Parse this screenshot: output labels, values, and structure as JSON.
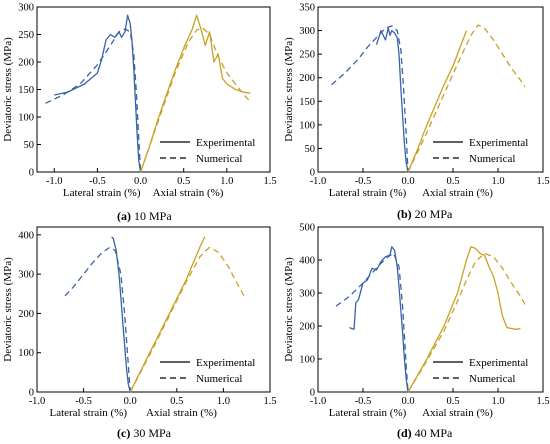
{
  "colors": {
    "lateral": "#3a62a6",
    "axial": "#c9a126",
    "axis": "#000000"
  },
  "legend_labels": [
    "Experimental",
    "Numerical"
  ],
  "chart_data": [
    {
      "type": "line",
      "panel_letter": "(a)",
      "caption": "10 MPa",
      "ylabel": "Deviatoric stress (MPa)",
      "xlabel_lateral": "Lateral strain (%)",
      "xlabel_axial": "Axial strain (%)",
      "xlim": [
        -1.2,
        1.5
      ],
      "ylim": [
        0,
        300
      ],
      "xticks": [
        -1.0,
        -0.5,
        0.0,
        0.5,
        1.0,
        1.5
      ],
      "xtick_labels": [
        "-1.0",
        "-0.5",
        "0.0",
        "0.5",
        "1.0",
        "1.5"
      ],
      "yticks": [
        0,
        50,
        100,
        150,
        200,
        250,
        300
      ],
      "ytick_labels": [
        "0",
        "50",
        "100",
        "150",
        "200",
        "250",
        "300"
      ],
      "legend": "bottom-right",
      "grid": false,
      "series": [
        {
          "style": "experimental",
          "part": "lateral",
          "x": [
            -1.0,
            -0.85,
            -0.65,
            -0.5,
            -0.45,
            -0.4,
            -0.35,
            -0.3,
            -0.25,
            -0.22,
            -0.18,
            -0.15,
            -0.12,
            -0.1,
            -0.08,
            -0.06,
            -0.04,
            -0.02,
            0.0
          ],
          "y": [
            140,
            145,
            160,
            180,
            205,
            240,
            250,
            245,
            255,
            245,
            255,
            285,
            270,
            240,
            190,
            130,
            70,
            20,
            0
          ]
        },
        {
          "style": "numerical",
          "part": "lateral",
          "x": [
            -1.1,
            -0.9,
            -0.7,
            -0.5,
            -0.35,
            -0.25,
            -0.18,
            -0.12,
            -0.08,
            -0.05,
            -0.02,
            0.0
          ],
          "y": [
            125,
            140,
            160,
            195,
            230,
            255,
            260,
            255,
            215,
            150,
            60,
            0
          ]
        },
        {
          "style": "experimental",
          "part": "axial",
          "x": [
            0.0,
            0.1,
            0.2,
            0.3,
            0.4,
            0.5,
            0.6,
            0.65,
            0.7,
            0.75,
            0.8,
            0.85,
            0.9,
            0.95,
            1.0,
            1.1,
            1.2,
            1.27
          ],
          "y": [
            0,
            45,
            95,
            140,
            185,
            225,
            260,
            285,
            260,
            230,
            255,
            200,
            215,
            170,
            160,
            150,
            145,
            143
          ]
        },
        {
          "style": "numerical",
          "part": "axial",
          "x": [
            0.0,
            0.2,
            0.4,
            0.55,
            0.65,
            0.72,
            0.8,
            0.9,
            1.0,
            1.1,
            1.2,
            1.27
          ],
          "y": [
            0,
            90,
            180,
            235,
            258,
            262,
            250,
            210,
            180,
            160,
            140,
            128
          ]
        }
      ]
    },
    {
      "type": "line",
      "panel_letter": "(b)",
      "caption": "20 MPa",
      "ylabel": "Deviatoric stress (MPa)",
      "xlabel_lateral": "Lateral strain (%)",
      "xlabel_axial": "Axial strain (%)",
      "xlim": [
        -1.0,
        1.5
      ],
      "ylim": [
        0,
        350
      ],
      "xticks": [
        -1.0,
        -0.5,
        0.0,
        0.5,
        1.0,
        1.5
      ],
      "xtick_labels": [
        "-1.0",
        "-0.5",
        "0.0",
        "0.5",
        "1.0",
        "1.5"
      ],
      "yticks": [
        0,
        50,
        100,
        150,
        200,
        250,
        300,
        350
      ],
      "ytick_labels": [
        "0",
        "50",
        "100",
        "150",
        "200",
        "250",
        "300",
        "350"
      ],
      "legend": "bottom-right",
      "grid": false,
      "series": [
        {
          "style": "experimental",
          "part": "lateral",
          "x": [
            -0.35,
            -0.3,
            -0.25,
            -0.22,
            -0.2,
            -0.18,
            -0.15,
            -0.12,
            -0.1,
            -0.08,
            -0.06,
            -0.04,
            -0.02,
            0.0
          ],
          "y": [
            270,
            300,
            280,
            305,
            290,
            300,
            295,
            285,
            250,
            180,
            120,
            60,
            20,
            0
          ]
        },
        {
          "style": "numerical",
          "part": "lateral",
          "x": [
            -0.85,
            -0.7,
            -0.55,
            -0.45,
            -0.35,
            -0.25,
            -0.18,
            -0.12,
            -0.08,
            -0.05,
            -0.02,
            0.0
          ],
          "y": [
            185,
            210,
            240,
            265,
            285,
            305,
            310,
            300,
            260,
            180,
            80,
            0
          ]
        },
        {
          "style": "experimental",
          "part": "axial",
          "x": [
            0.0,
            0.1,
            0.2,
            0.3,
            0.4,
            0.5,
            0.6,
            0.65
          ],
          "y": [
            0,
            45,
            95,
            140,
            185,
            225,
            275,
            300
          ]
        },
        {
          "style": "numerical",
          "part": "axial",
          "x": [
            0.0,
            0.2,
            0.4,
            0.6,
            0.7,
            0.78,
            0.85,
            0.95,
            1.05,
            1.15,
            1.25,
            1.3
          ],
          "y": [
            0,
            80,
            165,
            250,
            290,
            312,
            305,
            280,
            250,
            220,
            195,
            180
          ]
        }
      ]
    },
    {
      "type": "line",
      "panel_letter": "(c)",
      "caption": "30 MPa",
      "ylabel": "Deviatoric stress (MPa)",
      "xlabel_lateral": "Lateral strain (%)",
      "xlabel_axial": "Axial strain (%)",
      "xlim": [
        -1.0,
        1.5
      ],
      "ylim": [
        0,
        420
      ],
      "xticks": [
        -1.0,
        -0.5,
        0.0,
        0.5,
        1.0,
        1.5
      ],
      "xtick_labels": [
        "-1.0",
        "-0.5",
        "0.0",
        "0.5",
        "1.0",
        "1.5"
      ],
      "yticks": [
        0,
        100,
        200,
        300,
        400
      ],
      "ytick_labels": [
        "0",
        "100",
        "200",
        "300",
        "400"
      ],
      "legend": "bottom-right",
      "grid": false,
      "series": [
        {
          "style": "experimental",
          "part": "lateral",
          "x": [
            -0.2,
            -0.18,
            -0.15,
            -0.12,
            -0.1,
            -0.08,
            -0.06,
            -0.04,
            -0.02,
            0.0
          ],
          "y": [
            395,
            390,
            360,
            300,
            240,
            180,
            120,
            60,
            20,
            0
          ]
        },
        {
          "style": "numerical",
          "part": "lateral",
          "x": [
            -0.7,
            -0.6,
            -0.5,
            -0.4,
            -0.3,
            -0.22,
            -0.16,
            -0.1,
            -0.06,
            -0.02,
            0.0
          ],
          "y": [
            245,
            270,
            300,
            330,
            355,
            368,
            360,
            300,
            200,
            70,
            0
          ]
        },
        {
          "style": "experimental",
          "part": "axial",
          "x": [
            0.0,
            0.2,
            0.4,
            0.6,
            0.75,
            0.8
          ],
          "y": [
            0,
            95,
            190,
            285,
            370,
            395
          ]
        },
        {
          "style": "numerical",
          "part": "axial",
          "x": [
            0.0,
            0.2,
            0.4,
            0.6,
            0.75,
            0.85,
            0.95,
            1.05,
            1.15,
            1.22
          ],
          "y": [
            0,
            90,
            185,
            280,
            345,
            368,
            355,
            320,
            275,
            245
          ]
        }
      ]
    },
    {
      "type": "line",
      "panel_letter": "(d)",
      "caption": "40 MPa",
      "ylabel": "Deviatoric stress (MPa)",
      "xlabel_lateral": "Lateral strain (%)",
      "xlabel_axial": "Axial strain (%)",
      "xlim": [
        -1.0,
        1.5
      ],
      "ylim": [
        0,
        500
      ],
      "xticks": [
        -1.0,
        -0.5,
        0.0,
        0.5,
        1.0,
        1.5
      ],
      "xtick_labels": [
        "-1.0",
        "-0.5",
        "0.0",
        "0.5",
        "1.0",
        "1.5"
      ],
      "yticks": [
        0,
        100,
        200,
        300,
        400,
        500
      ],
      "ytick_labels": [
        "0",
        "100",
        "200",
        "300",
        "400",
        "500"
      ],
      "legend": "bottom-right",
      "grid": false,
      "series": [
        {
          "style": "experimental",
          "part": "lateral",
          "x": [
            -0.65,
            -0.6,
            -0.58,
            -0.55,
            -0.5,
            -0.45,
            -0.4,
            -0.35,
            -0.3,
            -0.25,
            -0.2,
            -0.18,
            -0.15,
            -0.12,
            -0.1,
            -0.08,
            -0.06,
            -0.04,
            -0.02,
            0.0
          ],
          "y": [
            195,
            190,
            270,
            280,
            330,
            340,
            375,
            370,
            395,
            410,
            415,
            440,
            430,
            380,
            320,
            250,
            180,
            100,
            40,
            0
          ]
        },
        {
          "style": "numerical",
          "part": "lateral",
          "x": [
            -0.8,
            -0.65,
            -0.5,
            -0.4,
            -0.3,
            -0.22,
            -0.16,
            -0.1,
            -0.06,
            -0.02,
            0.0
          ],
          "y": [
            260,
            290,
            330,
            360,
            390,
            410,
            420,
            380,
            260,
            80,
            0
          ]
        },
        {
          "style": "experimental",
          "part": "axial",
          "x": [
            0.0,
            0.2,
            0.4,
            0.55,
            0.65,
            0.7,
            0.75,
            0.8,
            0.85,
            0.9,
            0.95,
            1.0,
            1.02,
            1.05,
            1.1,
            1.2,
            1.25
          ],
          "y": [
            0,
            95,
            200,
            300,
            400,
            440,
            435,
            420,
            415,
            380,
            350,
            300,
            270,
            230,
            195,
            190,
            192
          ]
        },
        {
          "style": "numerical",
          "part": "axial",
          "x": [
            0.0,
            0.2,
            0.4,
            0.55,
            0.65,
            0.75,
            0.85,
            0.95,
            1.05,
            1.15,
            1.25,
            1.3
          ],
          "y": [
            0,
            90,
            185,
            275,
            340,
            395,
            420,
            410,
            375,
            330,
            290,
            265
          ]
        }
      ]
    }
  ]
}
